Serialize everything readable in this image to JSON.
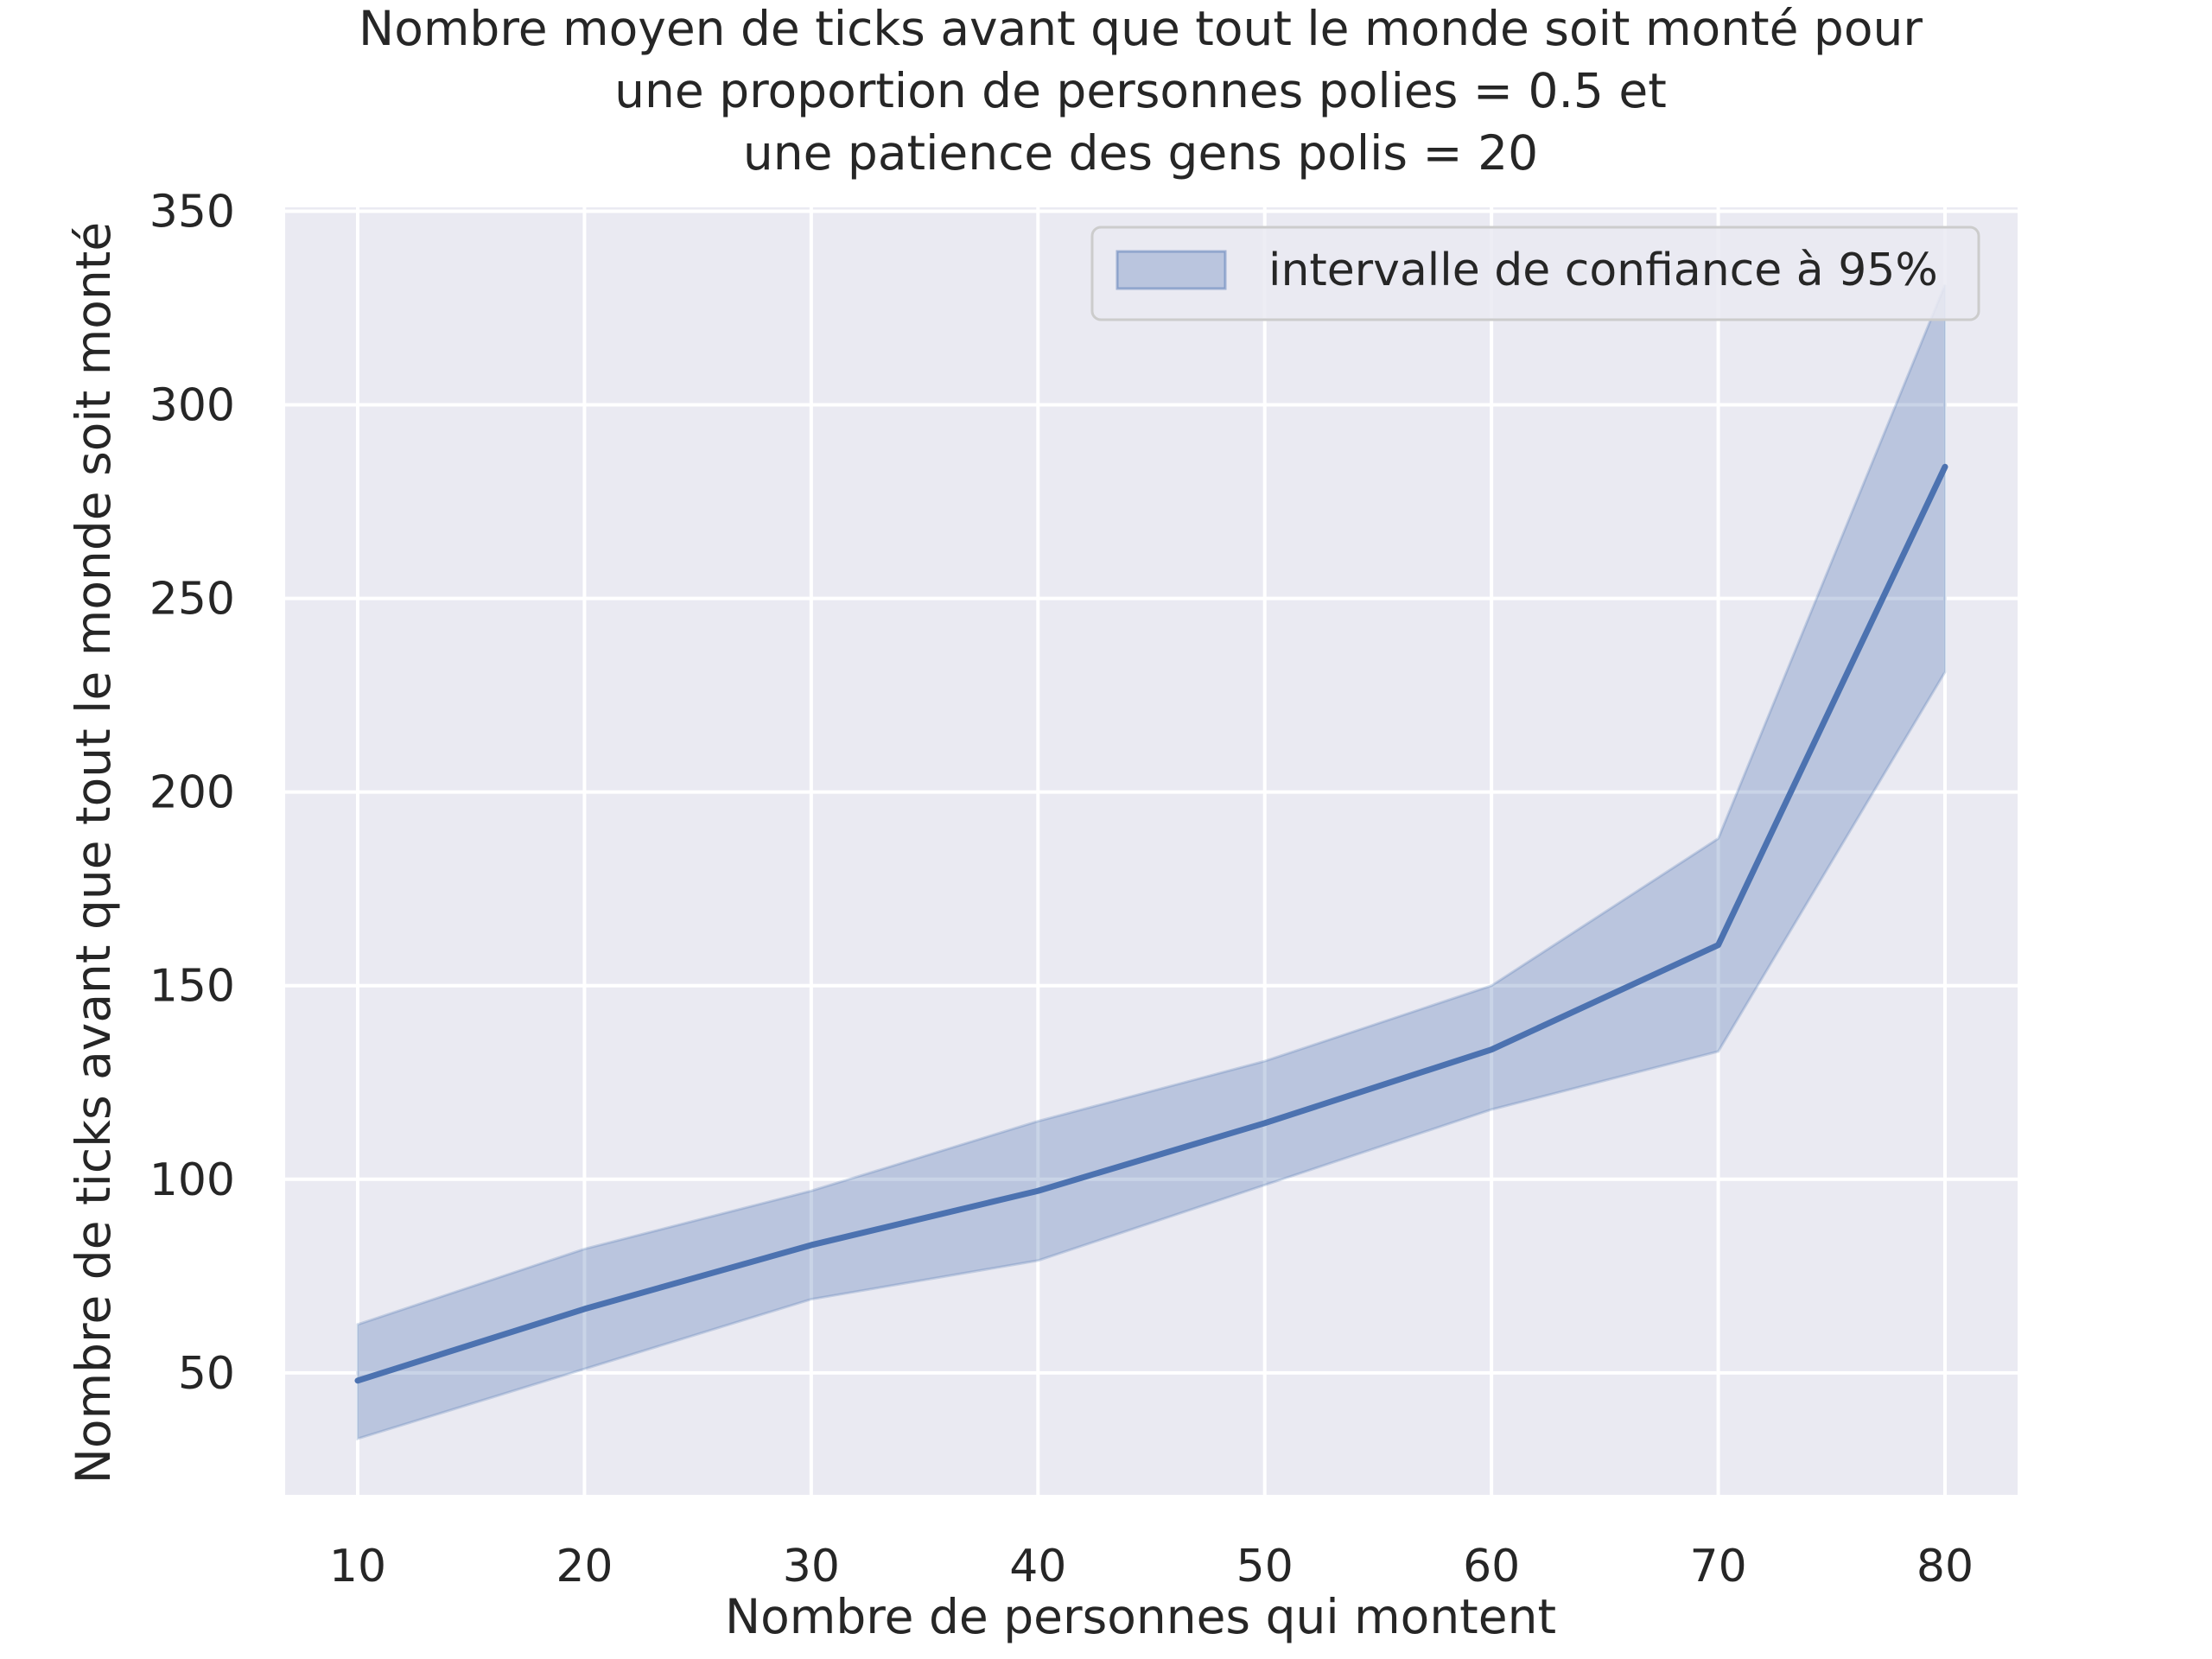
{
  "chart_data": {
    "type": "line",
    "title_lines": [
      "Nombre moyen de ticks avant que tout le monde soit monté pour",
      "une proportion de personnes polies = 0.5 et",
      "une patience des gens polis = 20"
    ],
    "xlabel": "Nombre de personnes qui montent",
    "ylabel": "Nombre de ticks avant que tout le monde soit monté",
    "x": [
      10,
      20,
      30,
      40,
      50,
      60,
      70,
      80
    ],
    "series": [
      {
        "values": [
          48,
          66.5,
          83,
          97,
          114.5,
          133.5,
          160.5,
          284
        ],
        "ci_lower": [
          33,
          51,
          69,
          79,
          98.5,
          118,
          133,
          231
        ],
        "ci_upper": [
          62.5,
          82,
          97,
          115,
          130.5,
          150,
          188,
          331
        ]
      }
    ],
    "xlim": [
      6.8,
      83.2
    ],
    "ylim": [
      18.5,
      351
    ],
    "xticks": [
      "10",
      "20",
      "30",
      "40",
      "50",
      "60",
      "70",
      "80"
    ],
    "yticks": [
      "50",
      "100",
      "150",
      "200",
      "250",
      "300",
      "350"
    ],
    "legend": {
      "placement": "upper right",
      "label": "intervalle de confiance à 95%"
    },
    "grid": true,
    "colors": {
      "line": "#4c72b0",
      "band": "#4c72b0",
      "plot_background": "#eaeaf2",
      "grid": "#ffffff",
      "text": "#262626"
    }
  }
}
